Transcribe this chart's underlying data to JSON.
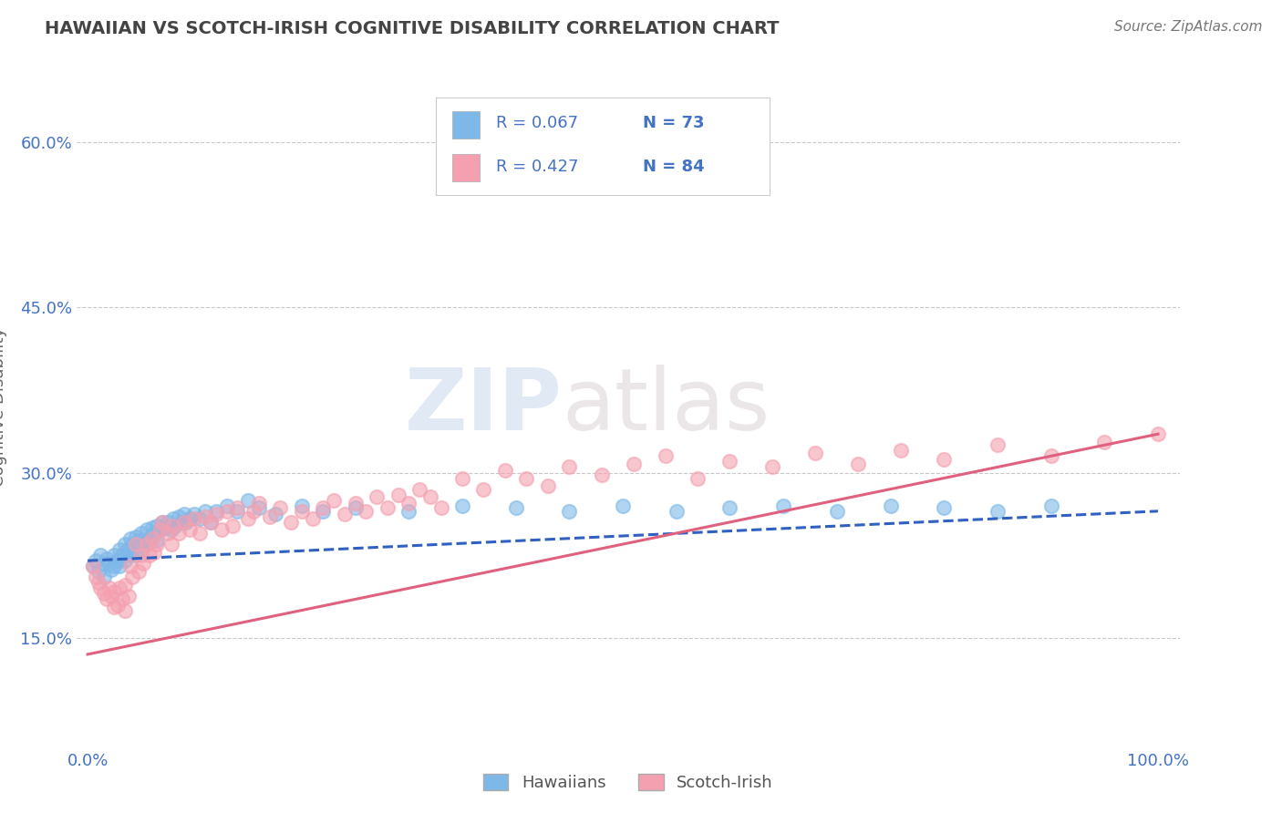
{
  "title": "HAWAIIAN VS SCOTCH-IRISH COGNITIVE DISABILITY CORRELATION CHART",
  "source": "Source: ZipAtlas.com",
  "ylabel": "Cognitive Disability",
  "xlim": [
    -0.01,
    1.02
  ],
  "ylim": [
    0.05,
    0.67
  ],
  "xticks": [
    0.0,
    1.0
  ],
  "xtick_labels": [
    "0.0%",
    "100.0%"
  ],
  "yticks": [
    0.15,
    0.3,
    0.45,
    0.6
  ],
  "ytick_labels": [
    "15.0%",
    "30.0%",
    "45.0%",
    "60.0%"
  ],
  "legend_labels": [
    "Hawaiians",
    "Scotch-Irish"
  ],
  "hawaiian_color": "#7eb8e8",
  "scotch_color": "#f4a0b0",
  "hawaiian_line_color": "#3060c0",
  "scotch_line_color": "#e06080",
  "background_color": "#ffffff",
  "grid_color": "#c8c8c8",
  "title_color": "#444444",
  "axis_color": "#4472c4",
  "watermark_zip": "ZIP",
  "watermark_atlas": "atlas",
  "hawaii_scatter_x": [
    0.005,
    0.008,
    0.01,
    0.012,
    0.015,
    0.015,
    0.018,
    0.02,
    0.022,
    0.025,
    0.025,
    0.028,
    0.03,
    0.03,
    0.032,
    0.035,
    0.035,
    0.037,
    0.038,
    0.04,
    0.04,
    0.042,
    0.045,
    0.045,
    0.048,
    0.05,
    0.05,
    0.052,
    0.055,
    0.055,
    0.058,
    0.06,
    0.062,
    0.065,
    0.065,
    0.068,
    0.07,
    0.072,
    0.075,
    0.078,
    0.08,
    0.082,
    0.085,
    0.088,
    0.09,
    0.092,
    0.095,
    0.1,
    0.105,
    0.11,
    0.115,
    0.12,
    0.13,
    0.14,
    0.15,
    0.16,
    0.175,
    0.2,
    0.22,
    0.25,
    0.3,
    0.35,
    0.4,
    0.45,
    0.5,
    0.55,
    0.6,
    0.65,
    0.7,
    0.75,
    0.8,
    0.85,
    0.9
  ],
  "hawaii_scatter_y": [
    0.215,
    0.22,
    0.21,
    0.225,
    0.218,
    0.205,
    0.222,
    0.218,
    0.212,
    0.225,
    0.215,
    0.22,
    0.23,
    0.215,
    0.225,
    0.235,
    0.22,
    0.23,
    0.225,
    0.24,
    0.228,
    0.235,
    0.242,
    0.225,
    0.238,
    0.245,
    0.23,
    0.238,
    0.248,
    0.235,
    0.24,
    0.25,
    0.245,
    0.252,
    0.238,
    0.248,
    0.255,
    0.25,
    0.255,
    0.248,
    0.258,
    0.252,
    0.26,
    0.255,
    0.262,
    0.255,
    0.258,
    0.262,
    0.258,
    0.265,
    0.255,
    0.265,
    0.27,
    0.265,
    0.275,
    0.268,
    0.262,
    0.27,
    0.265,
    0.268,
    0.265,
    0.27,
    0.268,
    0.265,
    0.27,
    0.265,
    0.268,
    0.27,
    0.265,
    0.27,
    0.268,
    0.265,
    0.27
  ],
  "scotch_scatter_x": [
    0.005,
    0.008,
    0.01,
    0.012,
    0.015,
    0.018,
    0.02,
    0.022,
    0.025,
    0.025,
    0.028,
    0.03,
    0.032,
    0.035,
    0.035,
    0.038,
    0.04,
    0.042,
    0.045,
    0.048,
    0.05,
    0.052,
    0.055,
    0.058,
    0.06,
    0.062,
    0.065,
    0.068,
    0.07,
    0.075,
    0.078,
    0.08,
    0.085,
    0.09,
    0.095,
    0.1,
    0.105,
    0.11,
    0.115,
    0.12,
    0.125,
    0.13,
    0.135,
    0.14,
    0.15,
    0.155,
    0.16,
    0.17,
    0.18,
    0.19,
    0.2,
    0.21,
    0.22,
    0.23,
    0.24,
    0.25,
    0.26,
    0.27,
    0.28,
    0.29,
    0.3,
    0.31,
    0.32,
    0.33,
    0.35,
    0.37,
    0.39,
    0.41,
    0.43,
    0.45,
    0.48,
    0.51,
    0.54,
    0.57,
    0.6,
    0.64,
    0.68,
    0.72,
    0.76,
    0.8,
    0.85,
    0.9,
    0.95,
    1.0
  ],
  "scotch_scatter_y": [
    0.215,
    0.205,
    0.2,
    0.195,
    0.19,
    0.185,
    0.195,
    0.188,
    0.178,
    0.192,
    0.18,
    0.195,
    0.185,
    0.198,
    0.175,
    0.188,
    0.215,
    0.205,
    0.235,
    0.21,
    0.225,
    0.218,
    0.235,
    0.225,
    0.24,
    0.228,
    0.235,
    0.248,
    0.255,
    0.245,
    0.235,
    0.252,
    0.245,
    0.255,
    0.248,
    0.258,
    0.245,
    0.26,
    0.255,
    0.262,
    0.248,
    0.265,
    0.252,
    0.268,
    0.258,
    0.265,
    0.272,
    0.26,
    0.268,
    0.255,
    0.265,
    0.258,
    0.268,
    0.275,
    0.262,
    0.272,
    0.265,
    0.278,
    0.268,
    0.28,
    0.272,
    0.285,
    0.278,
    0.268,
    0.295,
    0.285,
    0.302,
    0.295,
    0.288,
    0.305,
    0.298,
    0.308,
    0.315,
    0.295,
    0.31,
    0.305,
    0.318,
    0.308,
    0.32,
    0.312,
    0.325,
    0.315,
    0.328,
    0.335
  ],
  "hawaii_trend": [
    0.22,
    0.265
  ],
  "scotch_trend_start": 0.135,
  "scotch_trend_end": 0.335
}
